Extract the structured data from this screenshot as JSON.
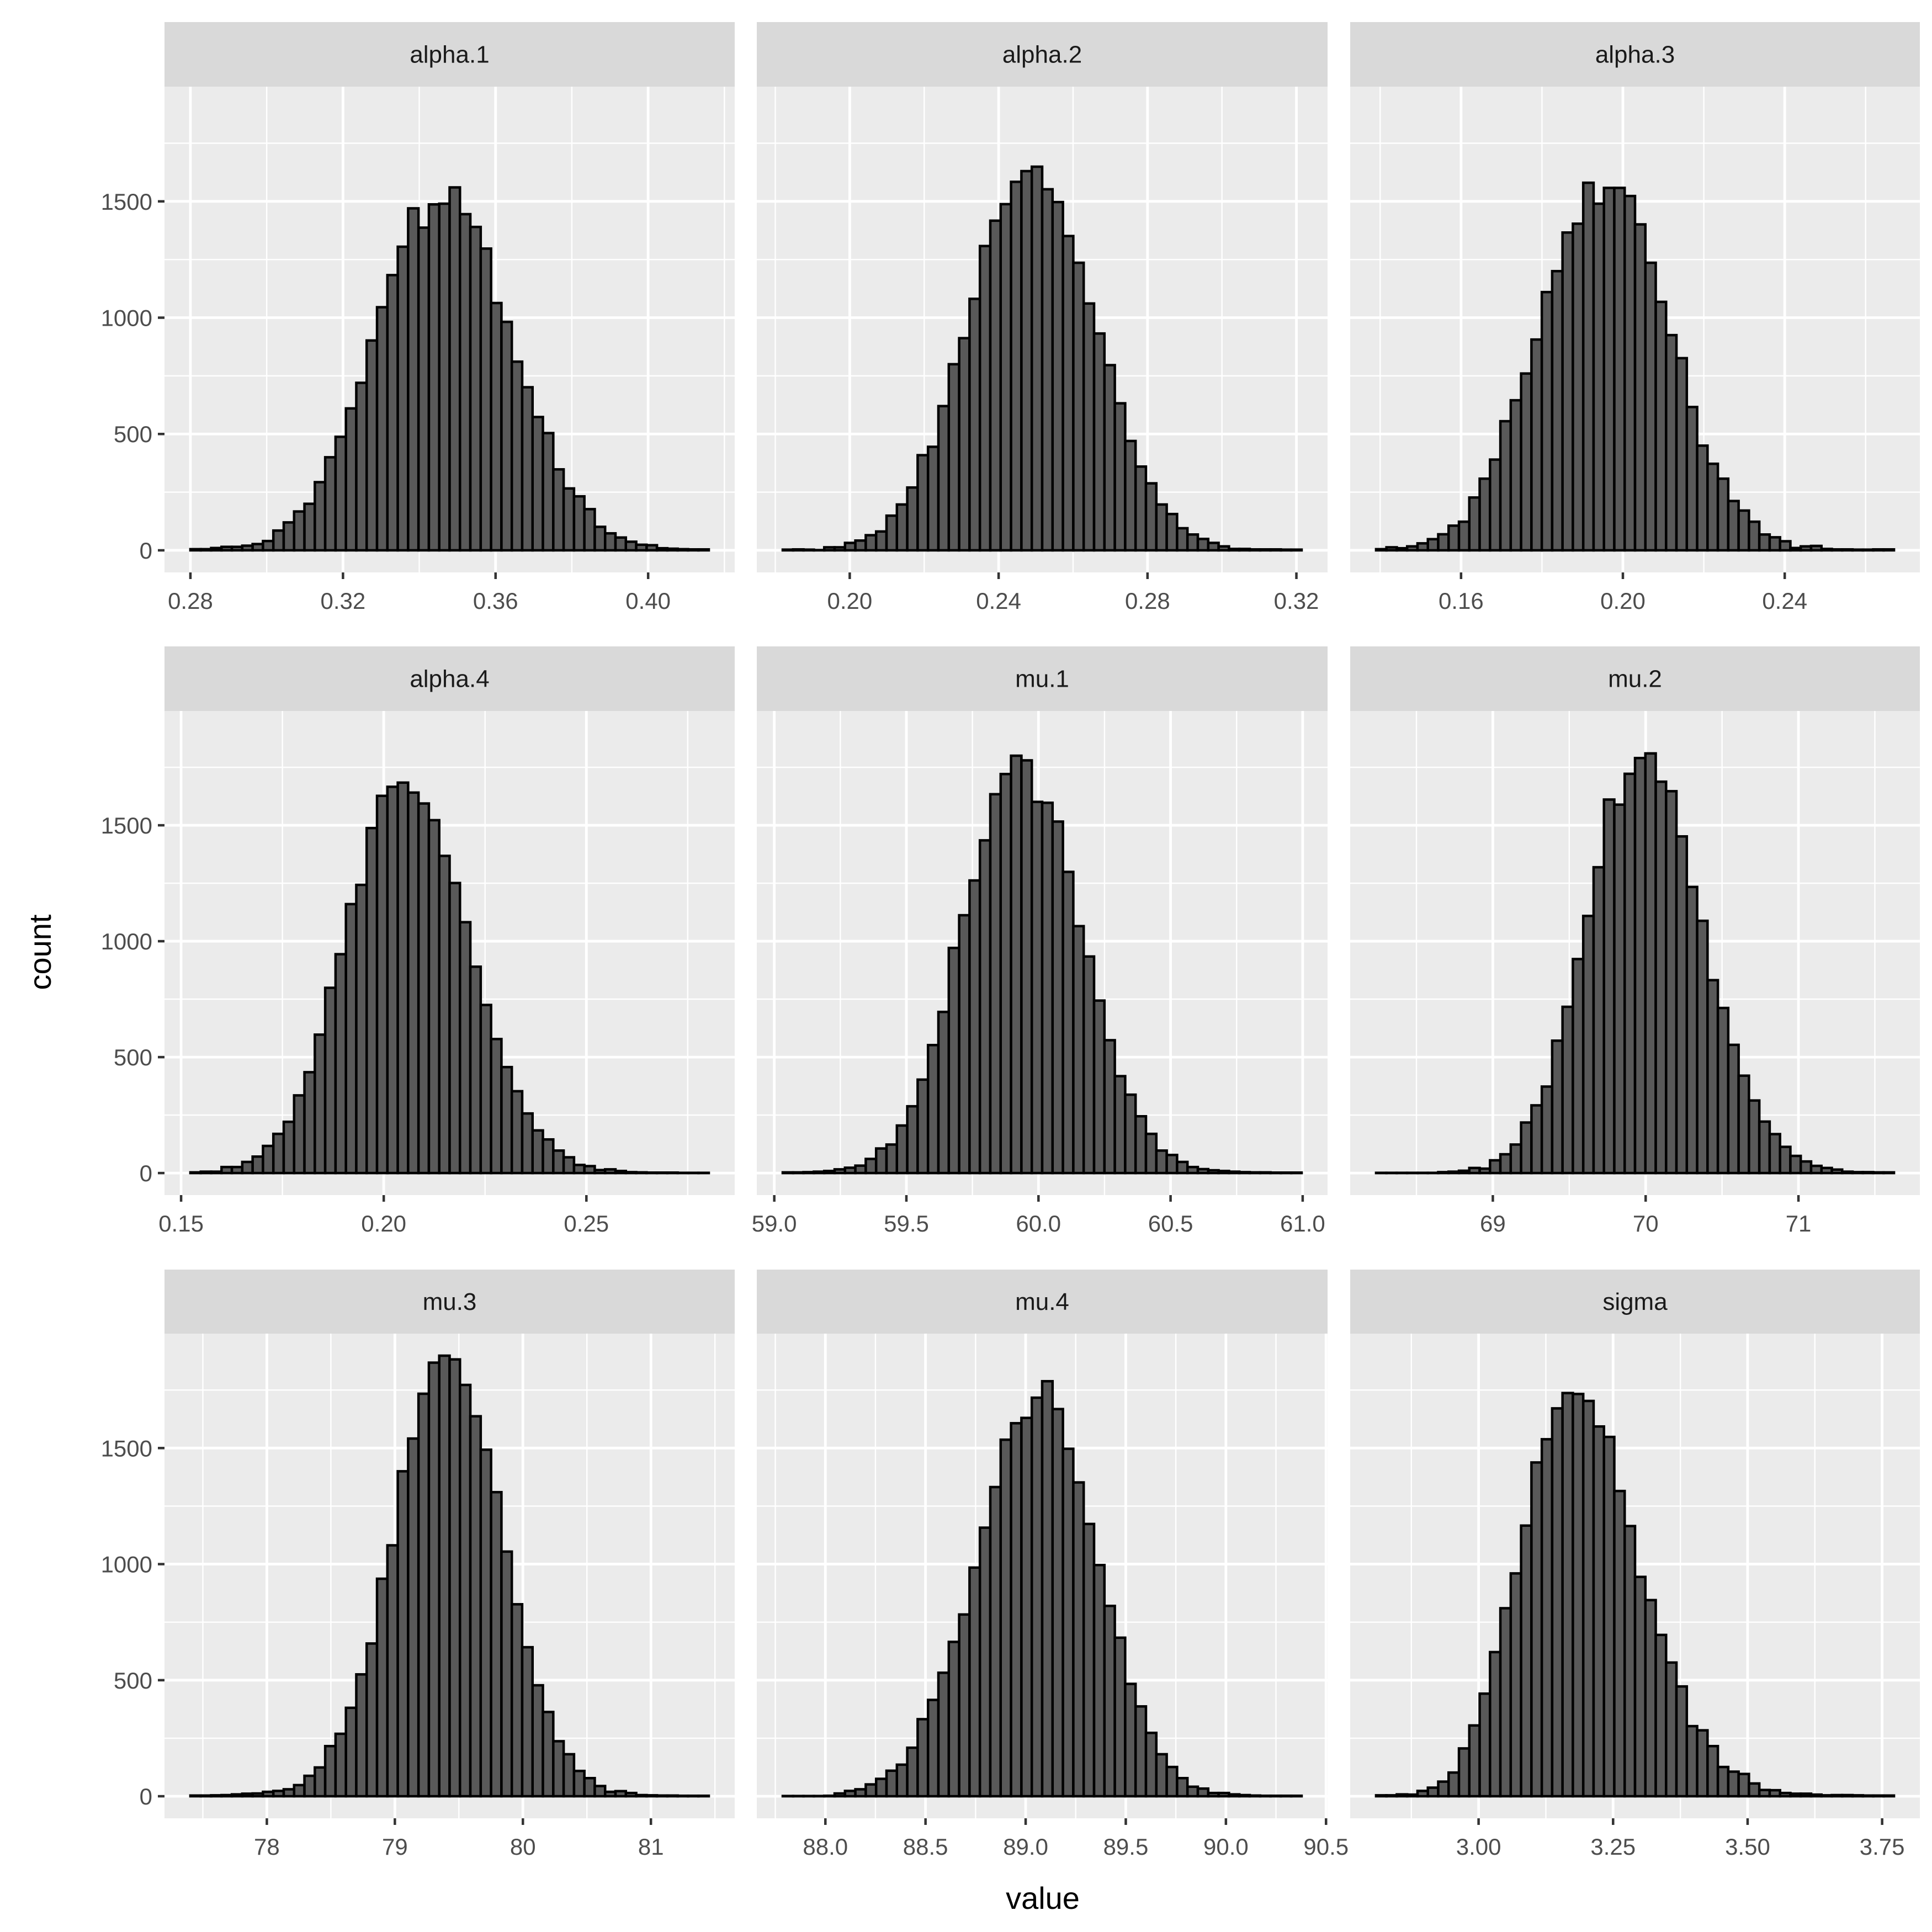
{
  "chart_data": {
    "type": "bar",
    "subtype": "faceted-histogram",
    "xlabel": "value",
    "ylabel": "count",
    "ylim": [
      -95,
      1993
    ],
    "yticks": [
      0,
      500,
      1000,
      1500
    ],
    "ytick_labels": [
      "0",
      "500",
      "1000",
      "1500"
    ],
    "grid": true,
    "bins": 50,
    "colors": {
      "bar_fill": "#595959",
      "bar_stroke": "#000000",
      "panel_bg": "#ebebeb",
      "strip_bg": "#d9d9d9",
      "grid": "#ffffff",
      "tick_text": "#4d4d4d"
    },
    "panels": [
      {
        "label": "alpha.1",
        "range": [
          0.28,
          0.4159
        ],
        "xticks": [
          0.28,
          0.32,
          0.36,
          0.4
        ],
        "xtick_labels": [
          "0.28",
          "0.32",
          "0.36",
          "0.40"
        ],
        "counts": [
          5,
          5,
          10,
          15,
          15,
          20,
          27,
          40,
          85,
          120,
          167,
          200,
          293,
          400,
          488,
          610,
          720,
          902,
          1045,
          1183,
          1305,
          1470,
          1387,
          1487,
          1490,
          1560,
          1445,
          1390,
          1297,
          1063,
          982,
          811,
          701,
          573,
          504,
          348,
          266,
          232,
          177,
          101,
          73,
          55,
          37,
          24,
          22,
          9,
          7,
          5,
          4,
          4
        ]
      },
      {
        "label": "alpha.2",
        "range": [
          0.182,
          0.3214
        ],
        "xticks": [
          0.2,
          0.24,
          0.28,
          0.32
        ],
        "xtick_labels": [
          "0.20",
          "0.24",
          "0.28",
          "0.32"
        ],
        "counts": [
          3,
          4,
          3,
          1,
          13,
          13,
          32,
          42,
          65,
          81,
          149,
          197,
          270,
          409,
          445,
          620,
          800,
          912,
          1081,
          1308,
          1417,
          1488,
          1584,
          1630,
          1649,
          1552,
          1497,
          1351,
          1236,
          1061,
          932,
          796,
          632,
          470,
          360,
          288,
          197,
          156,
          95,
          68,
          49,
          32,
          17,
          6,
          6,
          4,
          4,
          4,
          3,
          3
        ]
      },
      {
        "label": "alpha.3",
        "range": [
          0.139,
          0.267
        ],
        "xticks": [
          0.16,
          0.2,
          0.24
        ],
        "xtick_labels": [
          "0.16",
          "0.20",
          "0.24"
        ],
        "counts": [
          5,
          13,
          9,
          17,
          30,
          48,
          69,
          106,
          123,
          227,
          308,
          390,
          555,
          645,
          760,
          906,
          1110,
          1200,
          1366,
          1404,
          1580,
          1490,
          1558,
          1558,
          1523,
          1401,
          1236,
          1068,
          925,
          826,
          616,
          450,
          372,
          308,
          212,
          171,
          123,
          68,
          56,
          39,
          10,
          17,
          19,
          6,
          4,
          4,
          3,
          3,
          4,
          4
        ]
      },
      {
        "label": "alpha.4",
        "range": [
          0.1523,
          0.2802
        ],
        "xticks": [
          0.15,
          0.2,
          0.25
        ],
        "xtick_labels": [
          "0.15",
          "0.20",
          "0.25"
        ],
        "counts": [
          3,
          6,
          6,
          26,
          26,
          48,
          71,
          117,
          169,
          221,
          335,
          435,
          597,
          799,
          944,
          1160,
          1243,
          1488,
          1627,
          1666,
          1684,
          1641,
          1594,
          1522,
          1368,
          1251,
          1082,
          890,
          725,
          578,
          457,
          353,
          257,
          184,
          145,
          97,
          68,
          35,
          30,
          13,
          16,
          9,
          4,
          3,
          2,
          2,
          2,
          1,
          1,
          1
        ]
      },
      {
        "label": "mu.1",
        "range": [
          59.032,
          60.996
        ],
        "xticks": [
          59.0,
          59.5,
          60.0,
          60.5,
          61.0
        ],
        "xtick_labels": [
          "59.0",
          "59.5",
          "60.0",
          "60.5",
          "61.0"
        ],
        "counts": [
          3,
          3,
          4,
          6,
          9,
          16,
          23,
          32,
          61,
          106,
          123,
          205,
          288,
          403,
          552,
          695,
          971,
          1112,
          1262,
          1435,
          1634,
          1721,
          1800,
          1780,
          1601,
          1597,
          1516,
          1299,
          1065,
          934,
          744,
          573,
          418,
          338,
          245,
          169,
          97,
          78,
          48,
          26,
          17,
          12,
          9,
          6,
          4,
          3,
          3,
          2,
          2,
          2
        ]
      },
      {
        "label": "mu.2",
        "range": [
          68.236,
          71.625
        ],
        "xticks": [
          69,
          70,
          71
        ],
        "xtick_labels": [
          "69",
          "70",
          "71"
        ],
        "counts": [
          1,
          1,
          1,
          1,
          1,
          1,
          4,
          6,
          10,
          22,
          19,
          55,
          81,
          123,
          218,
          292,
          373,
          571,
          717,
          923,
          1109,
          1319,
          1611,
          1589,
          1722,
          1790,
          1810,
          1688,
          1647,
          1452,
          1234,
          1088,
          832,
          712,
          553,
          420,
          313,
          222,
          168,
          113,
          74,
          50,
          31,
          22,
          15,
          6,
          4,
          4,
          3,
          3
        ]
      },
      {
        "label": "mu.3",
        "range": [
          77.403,
          81.452
        ],
        "xticks": [
          78,
          79,
          80,
          81
        ],
        "xtick_labels": [
          "78",
          "79",
          "80",
          "81"
        ],
        "counts": [
          3,
          3,
          4,
          5,
          8,
          11,
          12,
          19,
          23,
          30,
          48,
          88,
          124,
          216,
          269,
          381,
          525,
          658,
          937,
          1081,
          1400,
          1541,
          1734,
          1868,
          1898,
          1882,
          1772,
          1637,
          1493,
          1310,
          1054,
          827,
          642,
          478,
          363,
          237,
          181,
          109,
          78,
          44,
          19,
          22,
          14,
          5,
          4,
          3,
          3,
          2,
          2,
          2
        ]
      },
      {
        "label": "mu.4",
        "range": [
          87.787,
          90.378
        ],
        "xticks": [
          88.0,
          88.5,
          89.0,
          89.5,
          90.0,
          90.5
        ],
        "xtick_labels": [
          "88.0",
          "88.5",
          "89.0",
          "89.5",
          "90.0",
          "90.5"
        ],
        "counts": [
          1,
          1,
          1,
          1,
          2,
          12,
          23,
          30,
          51,
          75,
          110,
          136,
          209,
          332,
          415,
          532,
          665,
          783,
          985,
          1157,
          1332,
          1536,
          1607,
          1630,
          1717,
          1788,
          1668,
          1497,
          1352,
          1173,
          996,
          820,
          683,
          484,
          387,
          273,
          181,
          126,
          78,
          41,
          33,
          14,
          14,
          8,
          5,
          3,
          2,
          2,
          2,
          2
        ]
      },
      {
        "label": "sigma",
        "range": [
          2.8095,
          3.772
        ],
        "xticks": [
          3.0,
          3.25,
          3.5,
          3.75
        ],
        "xtick_labels": [
          "3.00",
          "3.25",
          "3.50",
          "3.75"
        ],
        "counts": [
          4,
          4,
          8,
          7,
          23,
          37,
          63,
          102,
          206,
          305,
          442,
          621,
          810,
          960,
          1166,
          1438,
          1538,
          1671,
          1737,
          1733,
          1703,
          1593,
          1548,
          1315,
          1164,
          945,
          845,
          695,
          576,
          473,
          302,
          284,
          216,
          126,
          106,
          96,
          55,
          27,
          26,
          14,
          11,
          11,
          7,
          4,
          5,
          5,
          4,
          3,
          3,
          3
        ]
      }
    ]
  }
}
